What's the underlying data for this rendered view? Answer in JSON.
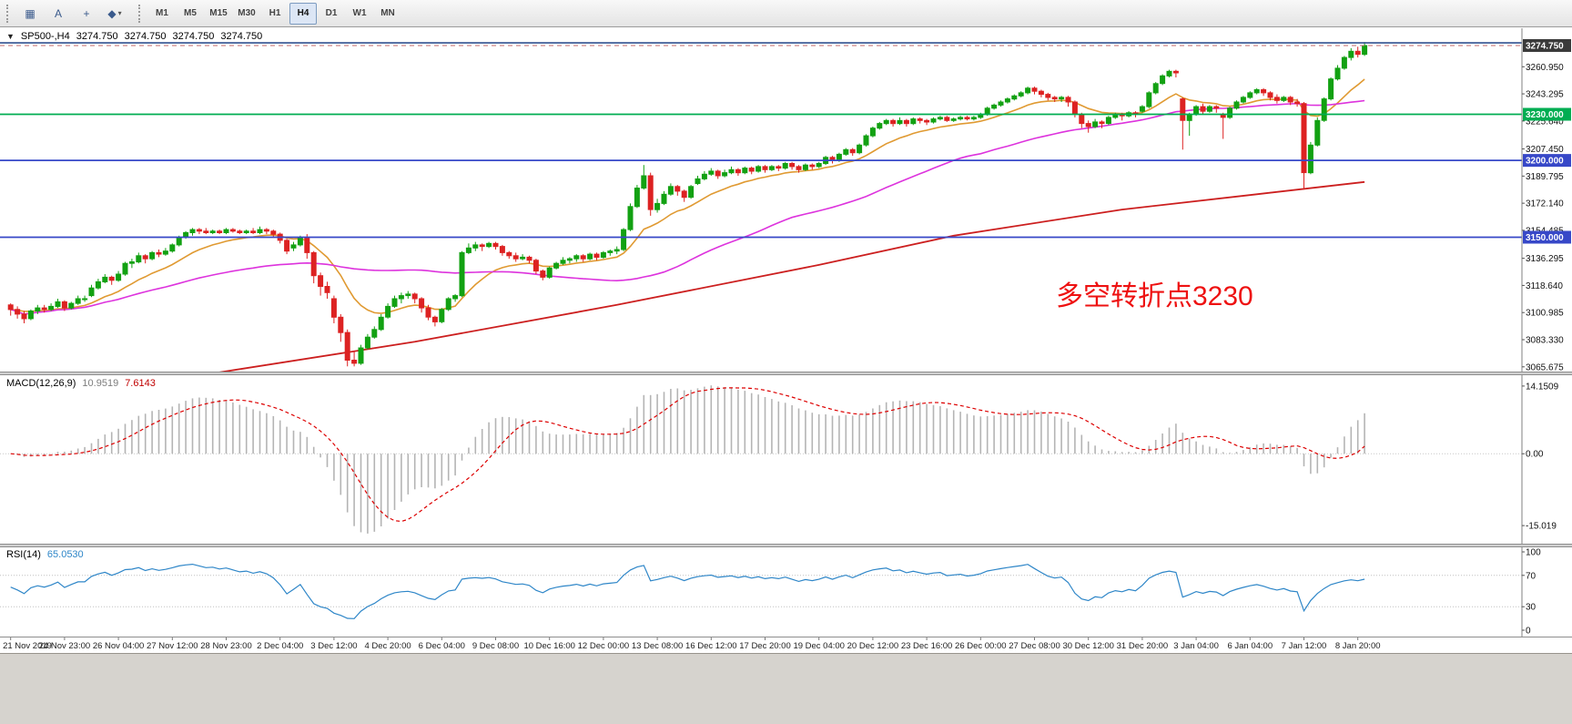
{
  "toolbar": {
    "icon_buttons": [
      {
        "name": "charts-grid-button",
        "glyph": "▦"
      },
      {
        "name": "text-annotation-button",
        "glyph": "A"
      },
      {
        "name": "crosshair-button",
        "glyph": "+"
      },
      {
        "name": "draw-tools-button",
        "glyph": "◆",
        "caret": "▾"
      }
    ],
    "timeframes": [
      "M1",
      "M5",
      "M15",
      "M30",
      "H1",
      "H4",
      "D1",
      "W1",
      "MN"
    ],
    "active_timeframe": "H4"
  },
  "chart": {
    "collapse_glyph": "▼",
    "symbol_period": "SP500-,H4",
    "ohlc": [
      "3274.750",
      "3274.750",
      "3274.750",
      "3274.750"
    ],
    "annotation": {
      "text": "多空转折点3230",
      "color": "#ee1111"
    }
  },
  "chart_data": {
    "type": "candlestick",
    "symbol": "SP500-",
    "period": "H4",
    "ylim": [
      3062,
      3286
    ],
    "y_axis_labels": [
      "3260.950",
      "3243.295",
      "3225.640",
      "3207.450",
      "3189.795",
      "3172.140",
      "3154.485",
      "3136.295",
      "3118.640",
      "3100.985",
      "3083.330",
      "3065.675"
    ],
    "current_price": 3274.75,
    "current_price_label": "3274.750",
    "current_price_badge_color": "#3a3a3a",
    "up_color": "#12a112",
    "down_color": "#dd2222",
    "x_labels": [
      "21 Nov 2019",
      "24 Nov 23:00",
      "26 Nov 04:00",
      "27 Nov 12:00",
      "28 Nov 23:00",
      "2 Dec 04:00",
      "3 Dec 12:00",
      "4 Dec 20:00",
      "6 Dec 04:00",
      "9 Dec 08:00",
      "10 Dec 16:00",
      "12 Dec 00:00",
      "13 Dec 08:00",
      "16 Dec 12:00",
      "17 Dec 20:00",
      "19 Dec 04:00",
      "20 Dec 12:00",
      "23 Dec 16:00",
      "26 Dec 00:00",
      "27 Dec 08:00",
      "30 Dec 12:00",
      "31 Dec 20:00",
      "3 Jan 04:00",
      "6 Jan 04:00",
      "7 Jan 12:00",
      "8 Jan 20:00"
    ],
    "x_label_step": 8,
    "horizontal_lines": [
      {
        "price": 3276.5,
        "color": "#31508f",
        "width": 1.6
      },
      {
        "price": 3230.0,
        "color": "#00ad52",
        "width": 1.8,
        "badge": "3230.000"
      },
      {
        "price": 3200.0,
        "color": "#3748c8",
        "width": 1.8,
        "badge": "3200.000"
      },
      {
        "price": 3150.0,
        "color": "#3748c8",
        "width": 1.8,
        "badge": "3150.000"
      }
    ],
    "moving_averages": [
      {
        "name": "ma-fast",
        "method": "ema",
        "period": 13,
        "color": "#e09a32"
      },
      {
        "name": "ma-mid",
        "method": "sma",
        "period": 50,
        "color": "#dd33dd"
      },
      {
        "name": "ma-slow",
        "method": "points",
        "color": "#cc1f1f",
        "points": [
          [
            25,
            3058
          ],
          [
            60,
            3082
          ],
          [
            90,
            3106
          ],
          [
            120,
            3132
          ],
          [
            140,
            3151
          ],
          [
            165,
            3168
          ],
          [
            185,
            3178
          ],
          [
            201,
            3186
          ]
        ]
      }
    ],
    "indicators": {
      "macd": {
        "label": "MACD(12,26,9)",
        "values": [
          "10.9519",
          "7.6143"
        ],
        "fast": 12,
        "slow": 26,
        "signal": 9,
        "axis_labels": {
          "top": "14.1509",
          "zero": "0.00",
          "bottom": "-15.019"
        },
        "histogram_color": "#b4b4b4",
        "signal_color": "#dd0000"
      },
      "rsi": {
        "label": "RSI(14)",
        "value": "65.0530",
        "period": 14,
        "color": "#2e86c8",
        "levels": [
          70,
          30
        ],
        "axis_labels": [
          "100",
          "70",
          "30",
          "0"
        ]
      }
    },
    "bars_ohlc": [
      [
        3106,
        3107,
        3099,
        3103
      ],
      [
        3103,
        3105,
        3097,
        3100
      ],
      [
        3100,
        3102,
        3094,
        3097
      ],
      [
        3097,
        3103,
        3096,
        3102
      ],
      [
        3102,
        3106,
        3100,
        3104
      ],
      [
        3104,
        3106,
        3101,
        3103
      ],
      [
        3103,
        3107,
        3102,
        3105
      ],
      [
        3105,
        3110,
        3104,
        3108
      ],
      [
        3108,
        3109,
        3102,
        3104
      ],
      [
        3104,
        3108,
        3103,
        3107
      ],
      [
        3107,
        3112,
        3106,
        3110
      ],
      [
        3110,
        3112,
        3108,
        3110
      ],
      [
        3112,
        3119,
        3111,
        3117
      ],
      [
        3117,
        3123,
        3116,
        3121
      ],
      [
        3121,
        3126,
        3120,
        3124
      ],
      [
        3124,
        3125,
        3119,
        3122
      ],
      [
        3122,
        3128,
        3121,
        3126
      ],
      [
        3126,
        3134,
        3125,
        3133
      ],
      [
        3133,
        3136,
        3130,
        3134
      ],
      [
        3134,
        3140,
        3133,
        3138
      ],
      [
        3138,
        3139,
        3133,
        3136
      ],
      [
        3136,
        3141,
        3135,
        3140
      ],
      [
        3140,
        3142,
        3137,
        3139
      ],
      [
        3139,
        3143,
        3138,
        3141
      ],
      [
        3141,
        3146,
        3140,
        3145
      ],
      [
        3145,
        3151,
        3144,
        3150
      ],
      [
        3150,
        3154,
        3149,
        3153
      ],
      [
        3153,
        3156,
        3151,
        3155
      ],
      [
        3155,
        3156,
        3152,
        3154
      ],
      [
        3154,
        3156,
        3152,
        3153
      ],
      [
        3153,
        3155,
        3152,
        3154
      ],
      [
        3154,
        3155,
        3152,
        3153
      ],
      [
        3153,
        3156,
        3152,
        3155
      ],
      [
        3155,
        3156,
        3153,
        3154
      ],
      [
        3154,
        3155,
        3152,
        3153
      ],
      [
        3153,
        3155,
        3152,
        3154
      ],
      [
        3154,
        3156,
        3152,
        3153
      ],
      [
        3153,
        3157,
        3152,
        3155
      ],
      [
        3155,
        3156,
        3152,
        3154
      ],
      [
        3154,
        3155,
        3150,
        3152
      ],
      [
        3152,
        3153,
        3146,
        3148
      ],
      [
        3148,
        3149,
        3139,
        3141
      ],
      [
        3143,
        3147,
        3141,
        3145
      ],
      [
        3145,
        3151,
        3144,
        3150
      ],
      [
        3150,
        3152,
        3136,
        3140
      ],
      [
        3140,
        3141,
        3120,
        3125
      ],
      [
        3125,
        3127,
        3112,
        3118
      ],
      [
        3118,
        3121,
        3110,
        3114
      ],
      [
        3110,
        3112,
        3094,
        3098
      ],
      [
        3098,
        3100,
        3082,
        3088
      ],
      [
        3088,
        3090,
        3066,
        3070
      ],
      [
        3070,
        3076,
        3066,
        3068
      ],
      [
        3068,
        3080,
        3067,
        3078
      ],
      [
        3078,
        3087,
        3077,
        3085
      ],
      [
        3085,
        3092,
        3084,
        3090
      ],
      [
        3090,
        3100,
        3089,
        3098
      ],
      [
        3098,
        3107,
        3097,
        3105
      ],
      [
        3105,
        3112,
        3104,
        3110
      ],
      [
        3110,
        3114,
        3107,
        3112
      ],
      [
        3112,
        3115,
        3110,
        3113
      ],
      [
        3113,
        3114,
        3107,
        3110
      ],
      [
        3110,
        3111,
        3101,
        3104
      ],
      [
        3104,
        3106,
        3096,
        3098
      ],
      [
        3098,
        3099,
        3092,
        3095
      ],
      [
        3095,
        3104,
        3094,
        3103
      ],
      [
        3103,
        3111,
        3102,
        3110
      ],
      [
        3110,
        3113,
        3108,
        3112
      ],
      [
        3112,
        3141,
        3111,
        3140
      ],
      [
        3140,
        3146,
        3139,
        3143
      ],
      [
        3143,
        3147,
        3141,
        3145
      ],
      [
        3145,
        3146,
        3141,
        3144
      ],
      [
        3144,
        3147,
        3143,
        3146
      ],
      [
        3146,
        3147,
        3142,
        3144
      ],
      [
        3144,
        3145,
        3138,
        3140
      ],
      [
        3140,
        3141,
        3136,
        3138
      ],
      [
        3138,
        3140,
        3134,
        3136
      ],
      [
        3136,
        3139,
        3135,
        3137
      ],
      [
        3137,
        3138,
        3133,
        3135
      ],
      [
        3135,
        3136,
        3126,
        3128
      ],
      [
        3128,
        3129,
        3122,
        3124
      ],
      [
        3124,
        3131,
        3123,
        3130
      ],
      [
        3130,
        3134,
        3129,
        3133
      ],
      [
        3133,
        3137,
        3132,
        3135
      ],
      [
        3135,
        3137,
        3133,
        3136
      ],
      [
        3136,
        3139,
        3134,
        3138
      ],
      [
        3138,
        3139,
        3134,
        3136
      ],
      [
        3136,
        3140,
        3135,
        3139
      ],
      [
        3139,
        3140,
        3135,
        3137
      ],
      [
        3137,
        3141,
        3136,
        3140
      ],
      [
        3140,
        3142,
        3138,
        3141
      ],
      [
        3141,
        3144,
        3139,
        3142
      ],
      [
        3142,
        3156,
        3141,
        3155
      ],
      [
        3155,
        3172,
        3154,
        3170
      ],
      [
        3170,
        3184,
        3169,
        3182
      ],
      [
        3182,
        3197,
        3181,
        3190
      ],
      [
        3190,
        3192,
        3164,
        3168
      ],
      [
        3168,
        3175,
        3166,
        3172
      ],
      [
        3172,
        3180,
        3171,
        3178
      ],
      [
        3178,
        3185,
        3177,
        3183
      ],
      [
        3183,
        3184,
        3177,
        3180
      ],
      [
        3180,
        3181,
        3173,
        3176
      ],
      [
        3176,
        3184,
        3175,
        3183
      ],
      [
        3185,
        3190,
        3184,
        3188
      ],
      [
        3188,
        3193,
        3187,
        3191
      ],
      [
        3191,
        3195,
        3190,
        3193
      ],
      [
        3193,
        3194,
        3188,
        3190
      ],
      [
        3190,
        3194,
        3189,
        3192
      ],
      [
        3192,
        3196,
        3191,
        3194
      ],
      [
        3194,
        3195,
        3190,
        3192
      ],
      [
        3192,
        3196,
        3191,
        3195
      ],
      [
        3195,
        3196,
        3191,
        3193
      ],
      [
        3193,
        3197,
        3192,
        3196
      ],
      [
        3196,
        3197,
        3192,
        3194
      ],
      [
        3194,
        3197,
        3193,
        3196
      ],
      [
        3196,
        3197,
        3193,
        3195
      ],
      [
        3195,
        3199,
        3194,
        3198
      ],
      [
        3198,
        3199,
        3194,
        3196
      ],
      [
        3196,
        3197,
        3192,
        3194
      ],
      [
        3194,
        3198,
        3193,
        3197
      ],
      [
        3197,
        3198,
        3194,
        3196
      ],
      [
        3196,
        3199,
        3195,
        3198
      ],
      [
        3198,
        3203,
        3197,
        3202
      ],
      [
        3202,
        3203,
        3198,
        3200
      ],
      [
        3200,
        3205,
        3199,
        3204
      ],
      [
        3204,
        3208,
        3203,
        3207
      ],
      [
        3207,
        3208,
        3203,
        3205
      ],
      [
        3205,
        3211,
        3204,
        3210
      ],
      [
        3210,
        3217,
        3209,
        3216
      ],
      [
        3216,
        3222,
        3215,
        3221
      ],
      [
        3221,
        3225,
        3220,
        3224
      ],
      [
        3224,
        3227,
        3223,
        3226
      ],
      [
        3226,
        3227,
        3222,
        3224
      ],
      [
        3224,
        3228,
        3223,
        3226
      ],
      [
        3226,
        3227,
        3222,
        3224
      ],
      [
        3224,
        3228,
        3223,
        3227
      ],
      [
        3227,
        3228,
        3224,
        3226
      ],
      [
        3226,
        3227,
        3223,
        3225
      ],
      [
        3225,
        3228,
        3224,
        3227
      ],
      [
        3227,
        3229,
        3226,
        3228
      ],
      [
        3228,
        3229,
        3225,
        3226
      ],
      [
        3226,
        3228,
        3225,
        3227
      ],
      [
        3227,
        3229,
        3226,
        3228
      ],
      [
        3228,
        3229,
        3226,
        3227
      ],
      [
        3227,
        3229,
        3226,
        3228
      ],
      [
        3228,
        3231,
        3227,
        3230
      ],
      [
        3230,
        3235,
        3229,
        3234
      ],
      [
        3234,
        3237,
        3233,
        3236
      ],
      [
        3236,
        3239,
        3235,
        3238
      ],
      [
        3238,
        3241,
        3237,
        3240
      ],
      [
        3240,
        3243,
        3239,
        3242
      ],
      [
        3242,
        3245,
        3241,
        3244
      ],
      [
        3244,
        3248,
        3243,
        3247
      ],
      [
        3247,
        3248,
        3243,
        3245
      ],
      [
        3245,
        3246,
        3241,
        3243
      ],
      [
        3243,
        3244,
        3239,
        3241
      ],
      [
        3241,
        3242,
        3238,
        3240
      ],
      [
        3240,
        3242,
        3238,
        3241
      ],
      [
        3241,
        3242,
        3235,
        3238
      ],
      [
        3238,
        3239,
        3228,
        3230
      ],
      [
        3230,
        3231,
        3221,
        3224
      ],
      [
        3224,
        3226,
        3218,
        3222
      ],
      [
        3222,
        3227,
        3221,
        3225
      ],
      [
        3225,
        3226,
        3221,
        3224
      ],
      [
        3224,
        3229,
        3223,
        3228
      ],
      [
        3228,
        3231,
        3227,
        3230
      ],
      [
        3230,
        3231,
        3226,
        3229
      ],
      [
        3229,
        3232,
        3228,
        3231
      ],
      [
        3231,
        3232,
        3228,
        3230
      ],
      [
        3232,
        3236,
        3231,
        3235
      ],
      [
        3235,
        3245,
        3234,
        3244
      ],
      [
        3244,
        3251,
        3243,
        3250
      ],
      [
        3250,
        3256,
        3249,
        3255
      ],
      [
        3255,
        3259,
        3254,
        3258
      ],
      [
        3258,
        3259,
        3254,
        3257
      ],
      [
        3240,
        3241,
        3207,
        3226
      ],
      [
        3226,
        3231,
        3216,
        3230
      ],
      [
        3230,
        3236,
        3229,
        3235
      ],
      [
        3235,
        3237,
        3230,
        3232
      ],
      [
        3232,
        3236,
        3231,
        3235
      ],
      [
        3235,
        3236,
        3231,
        3234
      ],
      [
        3230,
        3231,
        3214,
        3228
      ],
      [
        3228,
        3235,
        3227,
        3234
      ],
      [
        3234,
        3239,
        3233,
        3238
      ],
      [
        3238,
        3242,
        3237,
        3241
      ],
      [
        3241,
        3245,
        3240,
        3244
      ],
      [
        3244,
        3247,
        3243,
        3246
      ],
      [
        3246,
        3247,
        3242,
        3244
      ],
      [
        3244,
        3245,
        3239,
        3241
      ],
      [
        3241,
        3243,
        3237,
        3239
      ],
      [
        3239,
        3242,
        3238,
        3241
      ],
      [
        3241,
        3242,
        3236,
        3238
      ],
      [
        3238,
        3240,
        3235,
        3237
      ],
      [
        3237,
        3238,
        3181,
        3192
      ],
      [
        3192,
        3212,
        3191,
        3210
      ],
      [
        3210,
        3228,
        3209,
        3226
      ],
      [
        3226,
        3241,
        3225,
        3240
      ],
      [
        3240,
        3254,
        3239,
        3253
      ],
      [
        3253,
        3262,
        3252,
        3260
      ],
      [
        3260,
        3268,
        3259,
        3267
      ],
      [
        3267,
        3273,
        3265,
        3271
      ],
      [
        3271,
        3274,
        3267,
        3269
      ],
      [
        3269,
        3277,
        3268,
        3274.75
      ]
    ]
  }
}
